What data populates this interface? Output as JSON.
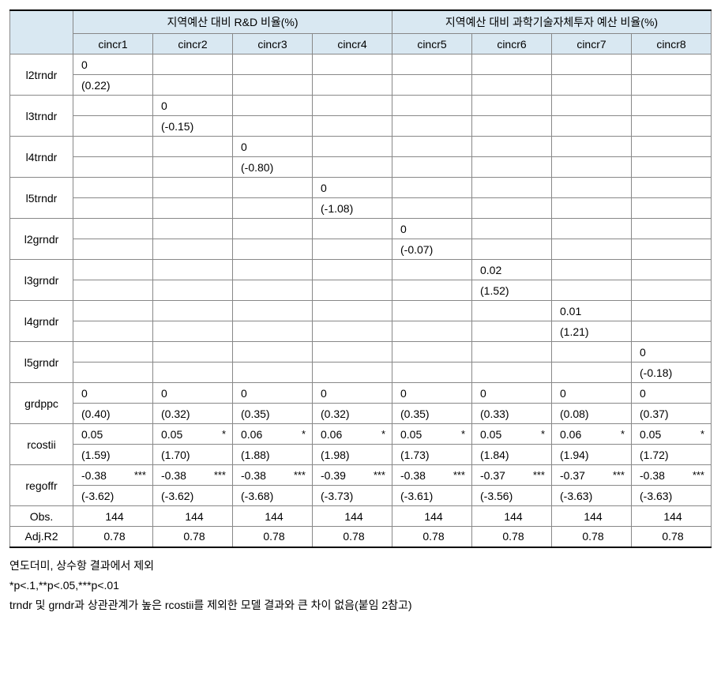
{
  "header": {
    "group1": "지역예산 대비 R&D 비율(%)",
    "group2": "지역예산 대비 과학기술자체투자 예산 비율(%)",
    "cols": [
      "cincr1",
      "cincr2",
      "cincr3",
      "cincr4",
      "cincr5",
      "cincr6",
      "cincr7",
      "cincr8"
    ]
  },
  "vars": [
    {
      "name": "l2trndr",
      "top": [
        "0",
        "",
        "",
        "",
        "",
        "",
        "",
        ""
      ],
      "bot": [
        "(0.22)",
        "",
        "",
        "",
        "",
        "",
        "",
        ""
      ]
    },
    {
      "name": "l3trndr",
      "top": [
        "",
        "0",
        "",
        "",
        "",
        "",
        "",
        ""
      ],
      "bot": [
        "",
        "(-0.15)",
        "",
        "",
        "",
        "",
        "",
        ""
      ]
    },
    {
      "name": "l4trndr",
      "top": [
        "",
        "",
        "0",
        "",
        "",
        "",
        "",
        ""
      ],
      "bot": [
        "",
        "",
        "(-0.80)",
        "",
        "",
        "",
        "",
        ""
      ]
    },
    {
      "name": "l5trndr",
      "top": [
        "",
        "",
        "",
        "0",
        "",
        "",
        "",
        ""
      ],
      "bot": [
        "",
        "",
        "",
        "(-1.08)",
        "",
        "",
        "",
        ""
      ]
    },
    {
      "name": "l2grndr",
      "top": [
        "",
        "",
        "",
        "",
        "0",
        "",
        "",
        ""
      ],
      "bot": [
        "",
        "",
        "",
        "",
        "(-0.07)",
        "",
        "",
        ""
      ]
    },
    {
      "name": "l3grndr",
      "top": [
        "",
        "",
        "",
        "",
        "",
        "0.02",
        "",
        ""
      ],
      "bot": [
        "",
        "",
        "",
        "",
        "",
        "(1.52)",
        "",
        ""
      ]
    },
    {
      "name": "l4grndr",
      "top": [
        "",
        "",
        "",
        "",
        "",
        "",
        "0.01",
        ""
      ],
      "bot": [
        "",
        "",
        "",
        "",
        "",
        "",
        "(1.21)",
        ""
      ]
    },
    {
      "name": "l5grndr",
      "top": [
        "",
        "",
        "",
        "",
        "",
        "",
        "",
        "0"
      ],
      "bot": [
        "",
        "",
        "",
        "",
        "",
        "",
        "",
        "(-0.18)"
      ]
    },
    {
      "name": "grdppc",
      "top": [
        "0",
        "0",
        "0",
        "0",
        "0",
        "0",
        "0",
        "0"
      ],
      "bot": [
        "(0.40)",
        "(0.32)",
        "(0.35)",
        "(0.32)",
        "(0.35)",
        "(0.33)",
        "(0.08)",
        "(0.37)"
      ]
    },
    {
      "name": "rcostii",
      "top": [
        "0.05",
        "0.05",
        "0.06",
        "0.06",
        "0.05",
        "0.05",
        "0.06",
        "0.05"
      ],
      "stars_top": [
        "",
        "*",
        "*",
        "*",
        "*",
        "*",
        "*",
        "*"
      ],
      "bot": [
        "(1.59)",
        "(1.70)",
        "(1.88)",
        "(1.98)",
        "(1.73)",
        "(1.84)",
        "(1.94)",
        "(1.72)"
      ]
    },
    {
      "name": "regoffr",
      "top": [
        "-0.38",
        "-0.38",
        "-0.38",
        "-0.39",
        "-0.38",
        "-0.37",
        "-0.37",
        "-0.38"
      ],
      "stars_top": [
        "***",
        "***",
        "***",
        "***",
        "***",
        "***",
        "***",
        "***"
      ],
      "bot": [
        "(-3.62)",
        "(-3.62)",
        "(-3.68)",
        "(-3.73)",
        "(-3.61)",
        "(-3.56)",
        "(-3.63)",
        "(-3.63)"
      ]
    }
  ],
  "single_rows": [
    {
      "name": "Obs.",
      "vals": [
        "144",
        "144",
        "144",
        "144",
        "144",
        "144",
        "144",
        "144"
      ]
    },
    {
      "name": "Adj.R2",
      "vals": [
        "0.78",
        "0.78",
        "0.78",
        "0.78",
        "0.78",
        "0.78",
        "0.78",
        "0.78"
      ]
    }
  ],
  "notes": [
    "연도더미, 상수항 결과에서 제외",
    "*p<.1,**p<.05,***p<.01",
    "trndr 및 grndr과 상관관계가 높은 rcostii를 제외한 모델 결과와 큰 차이 없음(붙임 2참고)"
  ]
}
